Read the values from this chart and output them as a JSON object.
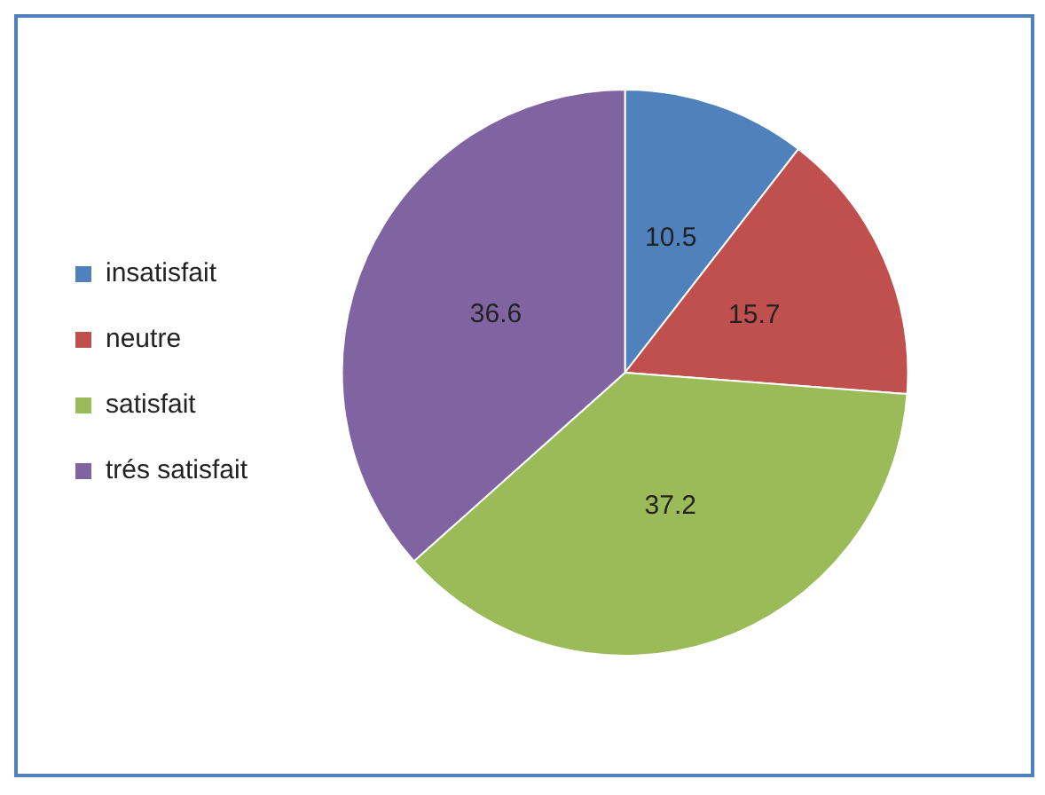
{
  "chart_data": {
    "type": "pie",
    "categories": [
      "insatisfait",
      "neutre",
      "satisfait",
      "trés satisfait"
    ],
    "values": [
      10.5,
      15.7,
      37.2,
      36.6
    ],
    "colors": [
      "#4f81bd",
      "#c0504d",
      "#9bbb59",
      "#8064a2"
    ],
    "data_labels": true,
    "legend": "left"
  }
}
